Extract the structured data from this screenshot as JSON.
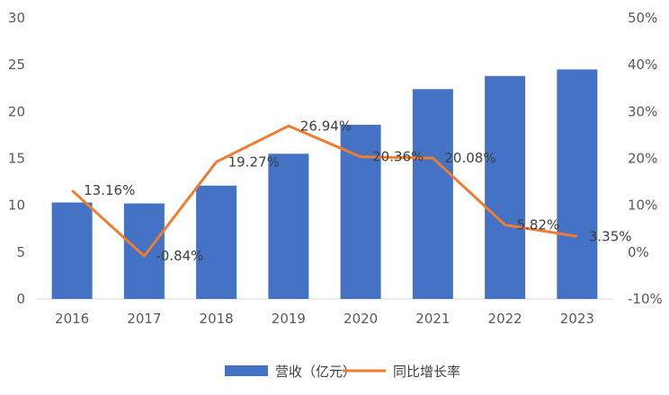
{
  "chart_data": {
    "type": "bar+line",
    "categories": [
      "2016",
      "2017",
      "2018",
      "2019",
      "2020",
      "2021",
      "2022",
      "2023"
    ],
    "series": [
      {
        "name": "营收（亿元）",
        "type": "bar",
        "axis": "left",
        "color": "#4472C4",
        "values": [
          10.3,
          10.2,
          12.1,
          15.5,
          18.6,
          22.4,
          23.8,
          24.5
        ]
      },
      {
        "name": "同比增长率",
        "type": "line",
        "axis": "right",
        "color": "#ED7D31",
        "values": [
          13.16,
          -0.84,
          19.27,
          26.94,
          20.36,
          20.08,
          5.82,
          3.35
        ],
        "labels": [
          "13.16%",
          "-0.84%",
          "19.27%",
          "26.94%",
          "20.36%",
          "20.08%",
          "5.82%",
          "3.35%"
        ]
      }
    ],
    "y_left": {
      "ylim": [
        0,
        30
      ],
      "ticks": [
        "0",
        "5",
        "10",
        "15",
        "20",
        "25",
        "30"
      ]
    },
    "y_right": {
      "ylim": [
        -10,
        50
      ],
      "ticks": [
        "-10%",
        "0%",
        "10%",
        "20%",
        "30%",
        "40%",
        "50%"
      ]
    },
    "grid": false,
    "legend_position": "bottom"
  }
}
